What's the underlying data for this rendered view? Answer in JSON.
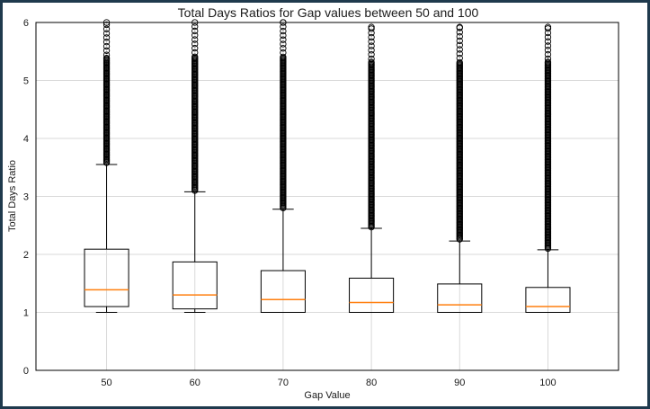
{
  "chart_data": {
    "type": "box",
    "title": "Total Days Ratios for Gap values between 50 and 100",
    "xlabel": "Gap Value",
    "ylabel": "Total Days Ratio",
    "ylim": [
      0,
      6
    ],
    "yticks": [
      "0",
      "1",
      "2",
      "3",
      "4",
      "5",
      "6"
    ],
    "grid": true,
    "categories": [
      "50",
      "60",
      "70",
      "80",
      "90",
      "100"
    ],
    "boxes": [
      {
        "whisker_low": 1.0,
        "q1": 1.1,
        "median": 1.39,
        "q3": 2.09,
        "whisker_high": 3.55,
        "outlier_min": 3.58,
        "outlier_max": 6.0
      },
      {
        "whisker_low": 1.0,
        "q1": 1.06,
        "median": 1.3,
        "q3": 1.87,
        "whisker_high": 3.08,
        "outlier_min": 3.1,
        "outlier_max": 6.0
      },
      {
        "whisker_low": 1.0,
        "q1": 1.0,
        "median": 1.22,
        "q3": 1.72,
        "whisker_high": 2.78,
        "outlier_min": 2.8,
        "outlier_max": 6.0
      },
      {
        "whisker_low": 1.0,
        "q1": 1.0,
        "median": 1.17,
        "q3": 1.59,
        "whisker_high": 2.45,
        "outlier_min": 2.47,
        "outlier_max": 5.92
      },
      {
        "whisker_low": 1.0,
        "q1": 1.0,
        "median": 1.13,
        "q3": 1.49,
        "whisker_high": 2.23,
        "outlier_min": 2.26,
        "outlier_max": 5.92
      },
      {
        "whisker_low": 1.0,
        "q1": 1.0,
        "median": 1.1,
        "q3": 1.43,
        "whisker_high": 2.08,
        "outlier_min": 2.1,
        "outlier_max": 5.92
      }
    ],
    "colors": {
      "box": "#000000",
      "median": "#ff7f0e",
      "grid": "#d9d9d9",
      "outlier": "#000000"
    }
  }
}
